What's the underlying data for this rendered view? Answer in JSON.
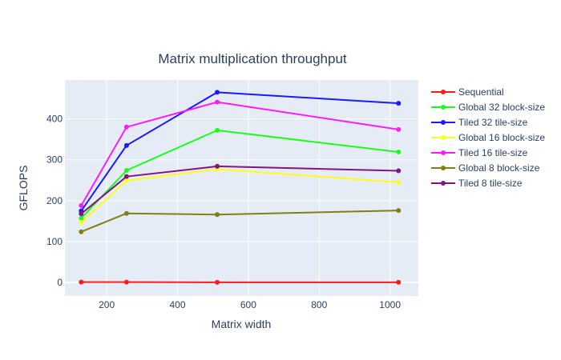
{
  "chart_data": {
    "type": "line",
    "title": "Matrix multiplication throughput",
    "xlabel": "Matrix width",
    "ylabel": "GFLOPS",
    "x": [
      128,
      256,
      512,
      1024
    ],
    "xlim": [
      82,
      1080
    ],
    "ylim": [
      -33,
      495
    ],
    "xticks": [
      200,
      400,
      600,
      800,
      1000
    ],
    "yticks": [
      0,
      100,
      200,
      300,
      400
    ],
    "grid": true,
    "legend_position": "top-right outside plot",
    "colors": {
      "plot_bg": "#E5ECF6",
      "grid": "#ffffff",
      "text": "#2a3f5f"
    },
    "series": [
      {
        "name": "Sequential",
        "color": "#FF1A1A",
        "values": [
          1,
          1,
          0.5,
          0.5
        ]
      },
      {
        "name": "Global 32 block-size",
        "color": "#1AFF1A",
        "values": [
          157,
          274,
          372,
          319
        ]
      },
      {
        "name": "Tiled 32 tile-size",
        "color": "#1A1AFF",
        "values": [
          175,
          335,
          465,
          438
        ]
      },
      {
        "name": "Global 16 block-size",
        "color": "#FFFF1A",
        "values": [
          147,
          249,
          277,
          245
        ]
      },
      {
        "name": "Tiled 16 tile-size",
        "color": "#FF1AFF",
        "values": [
          188,
          380,
          441,
          374
        ]
      },
      {
        "name": "Global 8 block-size",
        "color": "#808015",
        "values": [
          124,
          169,
          166,
          176
        ]
      },
      {
        "name": "Tiled 8 tile-size",
        "color": "#801580",
        "values": [
          168,
          259,
          284,
          273
        ]
      }
    ]
  }
}
